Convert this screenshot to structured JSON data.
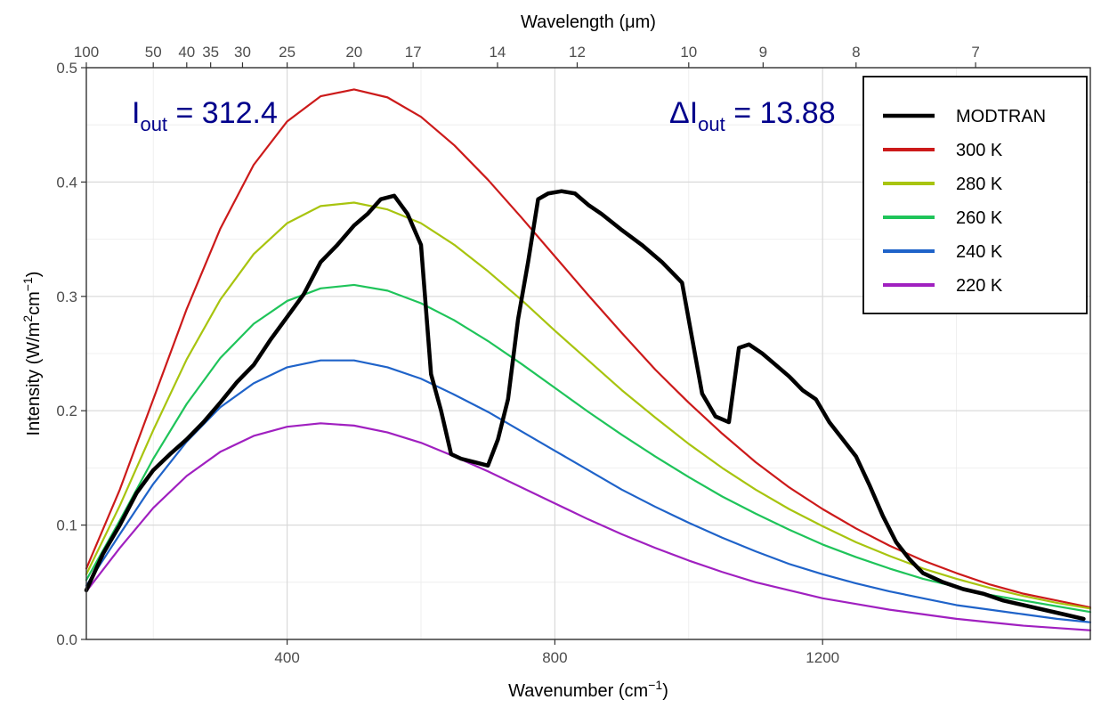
{
  "chart_data": {
    "type": "line",
    "title": "",
    "xlabel": {
      "prefix": "Wavenumber (cm",
      "sup": "−1",
      "suffix": ")"
    },
    "ylabel": {
      "prefix": "Intensity (W/m",
      "sup1": "2",
      "mid": "cm",
      "sup2": "−1",
      "suffix": ")"
    },
    "top_axis_label": "Wavelength (μm)",
    "xlim": [
      100,
      1600
    ],
    "ylim": [
      0,
      0.5
    ],
    "x_major_ticks": [
      {
        "value": 400,
        "label": "400"
      },
      {
        "value": 800,
        "label": "800"
      },
      {
        "value": 1200,
        "label": "1200"
      }
    ],
    "x_minor_grid": [
      200,
      600,
      1000,
      1400
    ],
    "y_ticks": [
      {
        "value": 0.0,
        "label": "0.0"
      },
      {
        "value": 0.1,
        "label": "0.1"
      },
      {
        "value": 0.2,
        "label": "0.2"
      },
      {
        "value": 0.3,
        "label": "0.3"
      },
      {
        "value": 0.4,
        "label": "0.4"
      },
      {
        "value": 0.5,
        "label": "0.5"
      }
    ],
    "top_ticks": [
      {
        "wavelength": 100,
        "label": "100"
      },
      {
        "wavelength": 50,
        "label": "50"
      },
      {
        "wavelength": 40,
        "label": "40"
      },
      {
        "wavelength": 35,
        "label": "35"
      },
      {
        "wavelength": 30,
        "label": "30"
      },
      {
        "wavelength": 25,
        "label": "25"
      },
      {
        "wavelength": 20,
        "label": "20"
      },
      {
        "wavelength": 17,
        "label": "17"
      },
      {
        "wavelength": 14,
        "label": "14"
      },
      {
        "wavelength": 12,
        "label": "12"
      },
      {
        "wavelength": 10,
        "label": "10"
      },
      {
        "wavelength": 9,
        "label": "9"
      },
      {
        "wavelength": 8,
        "label": "8"
      },
      {
        "wavelength": 7,
        "label": "7"
      }
    ],
    "grid": true,
    "legend_position": "top-right",
    "annotations": [
      {
        "symbol": "",
        "main": "I",
        "sub": "out",
        "value": " = 312.4"
      },
      {
        "symbol": "Δ",
        "main": "I",
        "sub": "out",
        "value": " = 13.88"
      }
    ],
    "series": [
      {
        "name": "MODTRAN",
        "color": "#000000",
        "x": [
          100,
          125,
          150,
          175,
          200,
          225,
          250,
          275,
          300,
          325,
          350,
          375,
          400,
          425,
          450,
          475,
          500,
          520,
          540,
          560,
          580,
          600,
          615,
          630,
          645,
          660,
          680,
          700,
          715,
          730,
          745,
          760,
          775,
          790,
          810,
          830,
          850,
          870,
          900,
          930,
          960,
          990,
          1020,
          1040,
          1060,
          1075,
          1090,
          1110,
          1130,
          1150,
          1170,
          1190,
          1210,
          1230,
          1250,
          1270,
          1290,
          1310,
          1330,
          1350,
          1380,
          1410,
          1440,
          1470,
          1500,
          1530,
          1560,
          1590
        ],
        "y": [
          0.043,
          0.075,
          0.1,
          0.128,
          0.148,
          0.162,
          0.175,
          0.19,
          0.207,
          0.225,
          0.24,
          0.262,
          0.282,
          0.302,
          0.33,
          0.345,
          0.362,
          0.372,
          0.385,
          0.388,
          0.372,
          0.345,
          0.232,
          0.2,
          0.162,
          0.158,
          0.155,
          0.152,
          0.175,
          0.21,
          0.28,
          0.33,
          0.385,
          0.39,
          0.392,
          0.39,
          0.38,
          0.372,
          0.358,
          0.345,
          0.33,
          0.312,
          0.215,
          0.195,
          0.19,
          0.255,
          0.258,
          0.25,
          0.24,
          0.23,
          0.218,
          0.21,
          0.19,
          0.175,
          0.16,
          0.135,
          0.108,
          0.085,
          0.07,
          0.058,
          0.05,
          0.044,
          0.04,
          0.034,
          0.03,
          0.026,
          0.022,
          0.018
        ]
      },
      {
        "name": "300 K",
        "color": "#cc1a1a",
        "x": [
          100,
          150,
          200,
          250,
          300,
          350,
          400,
          450,
          500,
          550,
          600,
          650,
          700,
          750,
          800,
          850,
          900,
          950,
          1000,
          1050,
          1100,
          1150,
          1200,
          1250,
          1300,
          1350,
          1400,
          1450,
          1500,
          1550,
          1600
        ],
        "y": [
          0.062,
          0.131,
          0.21,
          0.289,
          0.359,
          0.415,
          0.453,
          0.475,
          0.481,
          0.474,
          0.457,
          0.432,
          0.402,
          0.369,
          0.335,
          0.301,
          0.268,
          0.236,
          0.207,
          0.18,
          0.155,
          0.133,
          0.114,
          0.097,
          0.082,
          0.069,
          0.058,
          0.048,
          0.04,
          0.034,
          0.028
        ]
      },
      {
        "name": "280 K",
        "color": "#a8c40f",
        "x": [
          100,
          150,
          200,
          250,
          300,
          350,
          400,
          450,
          500,
          550,
          600,
          650,
          700,
          750,
          800,
          850,
          900,
          950,
          1000,
          1050,
          1100,
          1150,
          1200,
          1250,
          1300,
          1350,
          1400,
          1450,
          1500,
          1550,
          1600
        ],
        "y": [
          0.057,
          0.117,
          0.183,
          0.245,
          0.297,
          0.337,
          0.364,
          0.379,
          0.382,
          0.376,
          0.364,
          0.345,
          0.322,
          0.297,
          0.27,
          0.244,
          0.218,
          0.194,
          0.171,
          0.15,
          0.131,
          0.114,
          0.099,
          0.085,
          0.073,
          0.062,
          0.053,
          0.045,
          0.038,
          0.032,
          0.027
        ]
      },
      {
        "name": "260 K",
        "color": "#1fc45a",
        "x": [
          100,
          150,
          200,
          250,
          300,
          350,
          400,
          450,
          500,
          550,
          600,
          650,
          700,
          750,
          800,
          850,
          900,
          950,
          1000,
          1050,
          1100,
          1150,
          1200,
          1250,
          1300,
          1350,
          1400,
          1450,
          1500,
          1550,
          1600
        ],
        "y": [
          0.052,
          0.104,
          0.158,
          0.206,
          0.246,
          0.276,
          0.296,
          0.307,
          0.31,
          0.305,
          0.294,
          0.279,
          0.261,
          0.241,
          0.22,
          0.199,
          0.179,
          0.16,
          0.142,
          0.125,
          0.11,
          0.096,
          0.083,
          0.072,
          0.062,
          0.053,
          0.046,
          0.039,
          0.034,
          0.029,
          0.024
        ]
      },
      {
        "name": "240 K",
        "color": "#1f63c9",
        "x": [
          100,
          150,
          200,
          250,
          300,
          350,
          400,
          450,
          500,
          550,
          600,
          650,
          700,
          750,
          800,
          850,
          900,
          950,
          1000,
          1050,
          1100,
          1150,
          1200,
          1250,
          1300,
          1350,
          1400,
          1450,
          1500,
          1550,
          1600
        ],
        "y": [
          0.047,
          0.092,
          0.136,
          0.173,
          0.203,
          0.224,
          0.238,
          0.244,
          0.244,
          0.238,
          0.228,
          0.214,
          0.199,
          0.182,
          0.165,
          0.148,
          0.131,
          0.116,
          0.102,
          0.089,
          0.077,
          0.066,
          0.057,
          0.049,
          0.042,
          0.036,
          0.03,
          0.026,
          0.022,
          0.018,
          0.015
        ]
      },
      {
        "name": "220 K",
        "color": "#a020c0",
        "x": [
          100,
          150,
          200,
          250,
          300,
          350,
          400,
          450,
          500,
          550,
          600,
          650,
          700,
          750,
          800,
          850,
          900,
          950,
          1000,
          1050,
          1100,
          1150,
          1200,
          1250,
          1300,
          1350,
          1400,
          1450,
          1500,
          1550,
          1600
        ],
        "y": [
          0.042,
          0.08,
          0.115,
          0.143,
          0.164,
          0.178,
          0.186,
          0.189,
          0.187,
          0.181,
          0.172,
          0.16,
          0.147,
          0.133,
          0.119,
          0.105,
          0.092,
          0.08,
          0.069,
          0.059,
          0.05,
          0.043,
          0.036,
          0.031,
          0.026,
          0.022,
          0.018,
          0.015,
          0.012,
          0.01,
          0.008
        ]
      }
    ]
  }
}
